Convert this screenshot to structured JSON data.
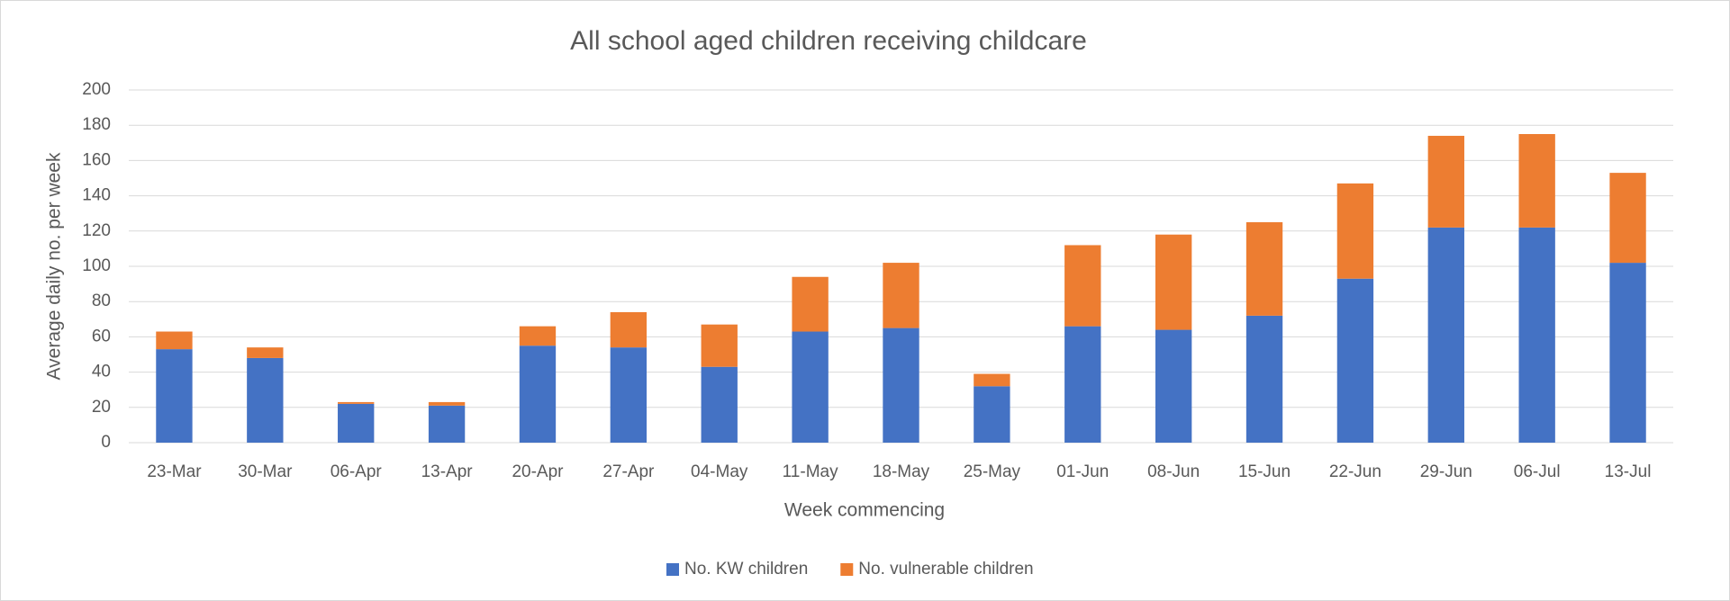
{
  "chart_data": {
    "type": "stacked_bar",
    "title": "All school aged children receiving childcare",
    "x_label": "Week commencing",
    "y_label": "Average daily  no. per week",
    "categories": [
      "23-Mar",
      "30-Mar",
      "06-Apr",
      "13-Apr",
      "20-Apr",
      "27-Apr",
      "04-May",
      "11-May",
      "18-May",
      "25-May",
      "01-Jun",
      "08-Jun",
      "15-Jun",
      "22-Jun",
      "29-Jun",
      "06-Jul",
      "13-Jul"
    ],
    "series": [
      {
        "name": "No. KW children",
        "color": "#4472c4",
        "values": [
          53,
          48,
          22,
          21,
          55,
          54,
          43,
          63,
          65,
          32,
          66,
          64,
          72,
          93,
          122,
          122,
          102
        ]
      },
      {
        "name": "No. vulnerable children",
        "color": "#ed7d31",
        "values": [
          10,
          6,
          1,
          2,
          11,
          20,
          24,
          31,
          37,
          7,
          46,
          54,
          53,
          54,
          52,
          53,
          51
        ]
      }
    ],
    "ylim": [
      0,
      200
    ],
    "yticks": [
      0,
      20,
      40,
      60,
      80,
      100,
      120,
      140,
      160,
      180,
      200
    ],
    "grid": true,
    "legend": "bottom"
  }
}
